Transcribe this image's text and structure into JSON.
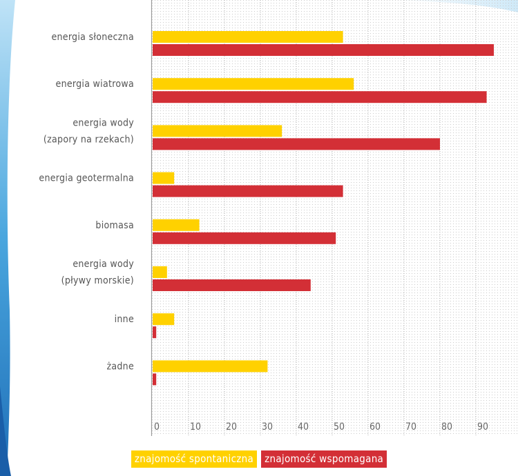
{
  "chart_data": {
    "type": "bar",
    "orientation": "horizontal",
    "categories": [
      [
        "energia słoneczna"
      ],
      [
        "energia wiatrowa"
      ],
      [
        "energia wody",
        "(zapory na rzekach)"
      ],
      [
        "energia geotermalna"
      ],
      [
        "biomasa"
      ],
      [
        "energia wody",
        "(pływy morskie)"
      ],
      [
        "inne"
      ],
      [
        "żadne"
      ]
    ],
    "series": [
      {
        "name": "znajomość spontaniczna",
        "color": "#FFD100",
        "values": [
          53,
          56,
          36,
          6,
          13,
          4,
          6,
          32
        ]
      },
      {
        "name": "znajomość wspomagana",
        "color": "#D32F36",
        "values": [
          95,
          93,
          80,
          53,
          51,
          44,
          1,
          1
        ]
      }
    ],
    "xlim": [
      0,
      100
    ],
    "xticks": [
      0,
      10,
      20,
      30,
      40,
      50,
      60,
      70,
      80,
      90
    ],
    "grid": "dotted",
    "legend_position": "bottom-center"
  }
}
